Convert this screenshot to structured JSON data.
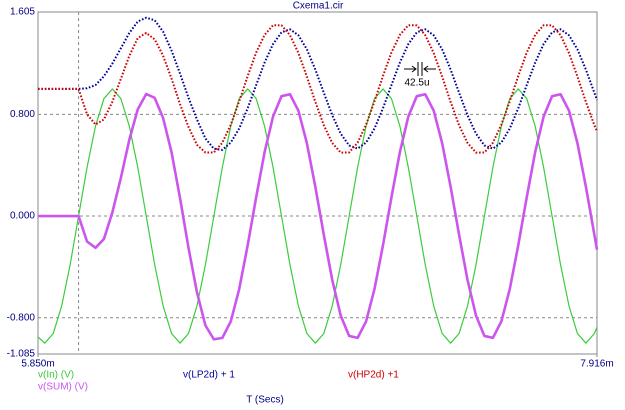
{
  "chart_data": {
    "type": "line",
    "title": "Cxema1.cir",
    "x_label": "T (Secs)",
    "annotation": "42.5u",
    "x": [
      0.00585,
      0.005875,
      0.00590625,
      0.0059375,
      0.00596875,
      0.006,
      0.00603125,
      0.0060625,
      0.00609375,
      0.006125,
      0.00615625,
      0.0061875,
      0.00621875,
      0.00625,
      0.00628125,
      0.0063125,
      0.00634375,
      0.006375,
      0.00640625,
      0.0064375,
      0.00646875,
      0.0065,
      0.00653125,
      0.0065625,
      0.00659375,
      0.006625,
      0.00665625,
      0.0066875,
      0.00671875,
      0.00675,
      0.00678125,
      0.0068125,
      0.00684375,
      0.006875,
      0.00690625,
      0.0069375,
      0.00696875,
      0.007,
      0.00703125,
      0.0070625,
      0.00709375,
      0.007125,
      0.00715625,
      0.0071875,
      0.00721875,
      0.00725,
      0.00728125,
      0.0073125,
      0.00734375,
      0.007375,
      0.00740625,
      0.0074375,
      0.00746875,
      0.0075,
      0.00753125,
      0.0075625,
      0.00759375,
      0.007625,
      0.00765625,
      0.0076875,
      0.00771875,
      0.00775,
      0.00778125,
      0.0078125,
      0.00784375,
      0.007875,
      0.00790625,
      0.007916
    ],
    "series": [
      {
        "name": "v(In) (V)",
        "color": "#3ccc3c",
        "width": 1.2,
        "dotted": false,
        "values": [
          -0.951,
          -1,
          -0.924,
          -0.707,
          -0.383,
          0,
          0.383,
          0.707,
          0.924,
          1,
          0.924,
          0.707,
          0.383,
          0,
          -0.383,
          -0.707,
          -0.924,
          -1,
          -0.924,
          -0.707,
          -0.383,
          0,
          0.383,
          0.707,
          0.924,
          1,
          0.924,
          0.707,
          0.383,
          0,
          -0.383,
          -0.707,
          -0.924,
          -1,
          -0.924,
          -0.707,
          -0.383,
          0,
          0.383,
          0.707,
          0.924,
          1,
          0.924,
          0.707,
          0.383,
          0,
          -0.383,
          -0.707,
          -0.924,
          -1,
          -0.924,
          -0.707,
          -0.383,
          0,
          0.383,
          0.707,
          0.924,
          1,
          0.924,
          0.707,
          0.383,
          0,
          -0.383,
          -0.707,
          -0.924,
          -1,
          -0.924,
          -0.873
        ]
      },
      {
        "name": "v(LP2d) + 1",
        "color": "#000099",
        "width": 2,
        "dotted": true,
        "values": [
          1,
          1,
          1,
          1,
          1,
          1,
          1.005,
          1.03,
          1.1,
          1.2,
          1.32,
          1.44,
          1.53,
          1.56,
          1.54,
          1.45,
          1.3,
          1.12,
          0.93,
          0.76,
          0.61,
          0.53,
          0.52,
          0.578,
          0.689,
          0.848,
          1.03,
          1.207,
          1.353,
          1.445,
          1.469,
          1.422,
          1.311,
          1.152,
          0.97,
          0.793,
          0.648,
          0.555,
          0.531,
          0.578,
          0.689,
          0.848,
          1.03,
          1.207,
          1.353,
          1.445,
          1.469,
          1.422,
          1.311,
          1.152,
          0.97,
          0.793,
          0.648,
          0.555,
          0.531,
          0.578,
          0.689,
          0.848,
          1.03,
          1.207,
          1.353,
          1.445,
          1.469,
          1.422,
          1.311,
          1.152,
          0.97,
          0.913
        ]
      },
      {
        "name": "v(HP2d) +1",
        "color": "#cc0000",
        "width": 2,
        "dotted": true,
        "values": [
          1,
          1,
          1,
          1,
          1,
          1,
          0.8,
          0.72,
          0.76,
          0.9,
          1.08,
          1.26,
          1.4,
          1.44,
          1.39,
          1.26,
          1.08,
          0.88,
          0.7,
          0.56,
          0.5,
          0.5,
          0.577,
          0.718,
          0.903,
          1.102,
          1.286,
          1.425,
          1.501,
          1.5,
          1.423,
          1.282,
          1.097,
          0.898,
          0.714,
          0.575,
          0.499,
          0.5,
          0.577,
          0.718,
          0.903,
          1.102,
          1.286,
          1.425,
          1.501,
          1.5,
          1.423,
          1.282,
          1.097,
          0.898,
          0.714,
          0.575,
          0.499,
          0.5,
          0.577,
          0.718,
          0.903,
          1.102,
          1.286,
          1.425,
          1.501,
          1.5,
          1.423,
          1.282,
          1.097,
          0.898,
          0.714,
          0.666
        ]
      },
      {
        "name": "v(SUM) (V)",
        "color": "#cc55ee",
        "width": 2.6,
        "dotted": false,
        "values": [
          0,
          0,
          0,
          0,
          0,
          0,
          -0.2,
          -0.25,
          -0.18,
          0.03,
          0.3,
          0.6,
          0.84,
          0.96,
          0.93,
          0.77,
          0.5,
          0.14,
          -0.25,
          -0.6,
          -0.86,
          -0.97,
          -0.958,
          -0.829,
          -0.573,
          -0.23,
          0.147,
          0.503,
          0.783,
          0.943,
          0.958,
          0.829,
          0.573,
          0.23,
          -0.147,
          -0.503,
          -0.783,
          -0.943,
          -0.958,
          -0.829,
          -0.573,
          -0.23,
          0.147,
          0.503,
          0.783,
          0.943,
          0.958,
          0.829,
          0.573,
          0.23,
          -0.147,
          -0.503,
          -0.783,
          -0.943,
          -0.958,
          -0.829,
          -0.573,
          -0.23,
          0.147,
          0.503,
          0.783,
          0.943,
          0.958,
          0.829,
          0.573,
          0.23,
          -0.147,
          -0.264
        ]
      }
    ],
    "xlim": [
      0.00585,
      0.007916
    ],
    "xticks": [
      {
        "value": 0.00585,
        "label": "5.850m"
      },
      {
        "value": 0.007916,
        "label": "7.916m"
      }
    ],
    "xgrid": [
      0.006
    ],
    "ylim": [
      -1.085,
      1.605
    ],
    "yticks": [
      {
        "value": 1.605,
        "label": "1.605"
      },
      {
        "value": 0.8,
        "label": "0.800"
      },
      {
        "value": 0,
        "label": "0.000"
      },
      {
        "value": -0.8,
        "label": "-0.800"
      },
      {
        "value": -1.085,
        "label": "-1.085"
      }
    ],
    "grid": true
  }
}
